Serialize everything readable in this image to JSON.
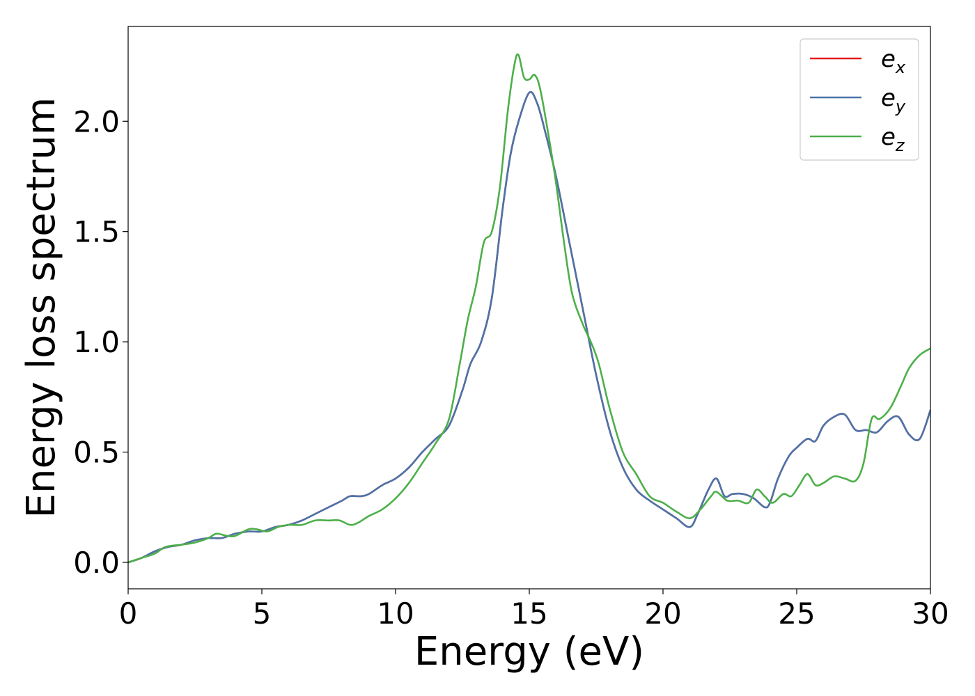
{
  "chart_data": {
    "type": "line",
    "title": "",
    "xlabel": "Energy (eV)",
    "ylabel": "Energy loss spectrum",
    "xlim": [
      0,
      30
    ],
    "ylim": [
      -0.12,
      2.43
    ],
    "xticks": [
      0,
      5,
      10,
      15,
      20,
      25,
      30
    ],
    "xtick_labels": [
      "0",
      "5",
      "10",
      "15",
      "20",
      "25",
      "30"
    ],
    "yticks": [
      0.0,
      0.5,
      1.0,
      1.5,
      2.0
    ],
    "ytick_labels": [
      "0.0",
      "0.5",
      "1.0",
      "1.5",
      "2.0"
    ],
    "grid": false,
    "legend_position": "top-right",
    "series": [
      {
        "name": "e_x",
        "base": "e",
        "sub": "x",
        "color": "#e41a1c",
        "x": [
          0,
          0.5,
          1,
          1.5,
          2,
          2.5,
          3,
          3.5,
          4,
          4.5,
          5,
          5.5,
          6,
          6.5,
          7,
          7.5,
          8,
          8.3,
          8.7,
          9,
          9.5,
          10,
          10.5,
          11,
          11.5,
          12,
          12.5,
          12.8,
          13.2,
          13.6,
          14,
          14.3,
          14.6,
          15,
          15.3,
          15.6,
          16,
          16.5,
          17,
          17.5,
          18,
          18.5,
          19,
          19.5,
          20,
          20.5,
          21,
          21.3,
          21.7,
          22,
          22.3,
          22.6,
          23,
          23.4,
          23.8,
          24,
          24.3,
          24.7,
          25,
          25.4,
          25.7,
          26,
          26.4,
          26.8,
          27.2,
          27.6,
          28,
          28.4,
          28.8,
          29.2,
          29.6,
          30
        ],
        "values": [
          0,
          0.02,
          0.05,
          0.07,
          0.08,
          0.1,
          0.11,
          0.11,
          0.13,
          0.14,
          0.14,
          0.16,
          0.17,
          0.19,
          0.22,
          0.25,
          0.28,
          0.3,
          0.3,
          0.31,
          0.35,
          0.38,
          0.43,
          0.5,
          0.56,
          0.62,
          0.78,
          0.9,
          1.0,
          1.2,
          1.6,
          1.85,
          2.0,
          2.13,
          2.08,
          1.95,
          1.75,
          1.45,
          1.15,
          0.85,
          0.6,
          0.43,
          0.33,
          0.28,
          0.24,
          0.2,
          0.16,
          0.22,
          0.33,
          0.38,
          0.3,
          0.31,
          0.31,
          0.29,
          0.25,
          0.27,
          0.38,
          0.48,
          0.52,
          0.56,
          0.55,
          0.62,
          0.66,
          0.67,
          0.6,
          0.6,
          0.59,
          0.64,
          0.66,
          0.58,
          0.56,
          0.69
        ]
      },
      {
        "name": "e_y",
        "base": "e",
        "sub": "y",
        "color": "#4a74aa",
        "x": [
          0,
          0.5,
          1,
          1.5,
          2,
          2.5,
          3,
          3.5,
          4,
          4.5,
          5,
          5.5,
          6,
          6.5,
          7,
          7.5,
          8,
          8.3,
          8.7,
          9,
          9.5,
          10,
          10.5,
          11,
          11.5,
          12,
          12.5,
          12.8,
          13.2,
          13.6,
          14,
          14.3,
          14.6,
          15,
          15.3,
          15.6,
          16,
          16.5,
          17,
          17.5,
          18,
          18.5,
          19,
          19.5,
          20,
          20.5,
          21,
          21.3,
          21.7,
          22,
          22.3,
          22.6,
          23,
          23.4,
          23.8,
          24,
          24.3,
          24.7,
          25,
          25.4,
          25.7,
          26,
          26.4,
          26.8,
          27.2,
          27.6,
          28,
          28.4,
          28.8,
          29.2,
          29.6,
          30
        ],
        "values": [
          0,
          0.02,
          0.05,
          0.07,
          0.08,
          0.1,
          0.11,
          0.11,
          0.13,
          0.14,
          0.14,
          0.16,
          0.17,
          0.19,
          0.22,
          0.25,
          0.28,
          0.3,
          0.3,
          0.31,
          0.35,
          0.38,
          0.43,
          0.5,
          0.56,
          0.62,
          0.78,
          0.9,
          1.0,
          1.2,
          1.6,
          1.85,
          2.0,
          2.13,
          2.08,
          1.95,
          1.75,
          1.45,
          1.15,
          0.85,
          0.6,
          0.43,
          0.33,
          0.28,
          0.24,
          0.2,
          0.16,
          0.22,
          0.33,
          0.38,
          0.3,
          0.31,
          0.31,
          0.29,
          0.25,
          0.27,
          0.38,
          0.48,
          0.52,
          0.56,
          0.55,
          0.62,
          0.66,
          0.67,
          0.6,
          0.6,
          0.59,
          0.64,
          0.66,
          0.58,
          0.56,
          0.69
        ]
      },
      {
        "name": "e_z",
        "base": "e",
        "sub": "z",
        "color": "#4daf4a",
        "x": [
          0,
          0.5,
          1,
          1.4,
          2,
          2.5,
          3,
          3.3,
          3.7,
          4,
          4.5,
          4.8,
          5.2,
          5.6,
          6,
          6.5,
          7,
          7.5,
          7.9,
          8.3,
          8.6,
          9,
          9.5,
          10,
          10.5,
          11,
          11.5,
          12,
          12.4,
          12.7,
          13,
          13.3,
          13.6,
          13.9,
          14.2,
          14.45,
          14.6,
          14.8,
          15,
          15.2,
          15.4,
          15.7,
          16,
          16.3,
          16.6,
          17,
          17.3,
          17.6,
          18,
          18.5,
          19,
          19.5,
          20,
          20.5,
          21,
          21.4,
          21.8,
          22,
          22.4,
          22.8,
          23.2,
          23.5,
          23.8,
          24.1,
          24.5,
          24.8,
          25.1,
          25.4,
          25.7,
          26,
          26.4,
          26.8,
          27.2,
          27.5,
          27.8,
          28.1,
          28.5,
          28.9,
          29.2,
          29.6,
          30
        ],
        "values": [
          0,
          0.02,
          0.04,
          0.07,
          0.08,
          0.09,
          0.11,
          0.13,
          0.12,
          0.12,
          0.15,
          0.15,
          0.14,
          0.16,
          0.17,
          0.17,
          0.19,
          0.19,
          0.19,
          0.17,
          0.18,
          0.21,
          0.24,
          0.29,
          0.36,
          0.45,
          0.54,
          0.65,
          0.9,
          1.1,
          1.25,
          1.45,
          1.5,
          1.7,
          2.05,
          2.26,
          2.3,
          2.2,
          2.19,
          2.21,
          2.15,
          1.95,
          1.72,
          1.45,
          1.22,
          1.08,
          1.0,
          0.9,
          0.7,
          0.5,
          0.4,
          0.3,
          0.27,
          0.23,
          0.2,
          0.24,
          0.3,
          0.32,
          0.28,
          0.28,
          0.27,
          0.33,
          0.3,
          0.27,
          0.31,
          0.3,
          0.35,
          0.4,
          0.35,
          0.36,
          0.39,
          0.38,
          0.37,
          0.45,
          0.65,
          0.65,
          0.7,
          0.8,
          0.88,
          0.94,
          0.97
        ]
      }
    ]
  }
}
